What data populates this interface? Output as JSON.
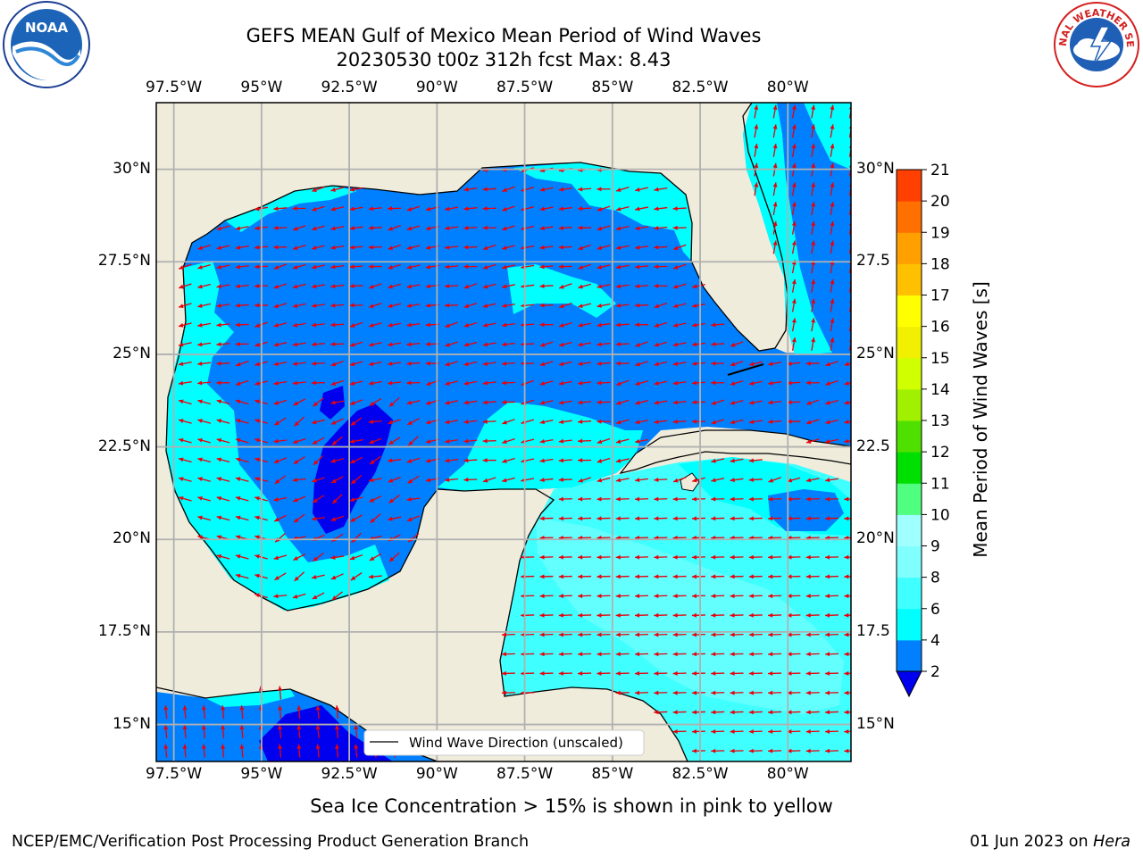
{
  "header": {
    "title_line1": "GEFS MEAN Gulf of Mexico Mean Period of Wind Waves",
    "title_line2": "20230530 t00z 312h fcst   Max: 8.43"
  },
  "logos": {
    "left": {
      "name": "noaa-logo",
      "text": "NOAA"
    },
    "right": {
      "name": "nws-logo",
      "text": "NATIONAL WEATHER SERVICE"
    }
  },
  "legend": {
    "label": "Wind Wave Direction (unscaled)"
  },
  "colorbar": {
    "label": "Mean Period of Wind Waves [s]",
    "ticks": [
      "2",
      "4",
      "6",
      "8",
      "9",
      "10",
      "11",
      "12",
      "13",
      "14",
      "15",
      "16",
      "17",
      "18",
      "19",
      "20",
      "21"
    ],
    "colors": [
      "#0080ff",
      "#00ffff",
      "#40ffff",
      "#80ffff",
      "#a0ffff",
      "#50ff80",
      "#00e000",
      "#50e000",
      "#a0f000",
      "#d0ff00",
      "#f0f000",
      "#ffff00",
      "#ffc000",
      "#ffa000",
      "#ff7000",
      "#ff4000",
      "#ff0000"
    ],
    "under_color": "#0000ee"
  },
  "footer": {
    "note": "Sea Ice Concentration > 15% is shown in pink to yellow",
    "left": "NCEP/EMC/Verification Post Processing Product Generation Branch",
    "date": "01 Jun 2023 on ",
    "host": "Hera"
  },
  "chart_data": {
    "type": "heatmap",
    "title": "GEFS MEAN Gulf of Mexico Mean Period of Wind Waves",
    "subtitle": "20230530 t00z 312h fcst   Max: 8.43",
    "x_ticks": [
      "97.5°W",
      "95°W",
      "92.5°W",
      "90°W",
      "87.5°W",
      "85°W",
      "82.5°W",
      "80°W"
    ],
    "y_ticks_left": [
      "30°N",
      "27.5°N",
      "25°N",
      "22.5°N",
      "20°N",
      "17.5°N",
      "15°N"
    ],
    "y_ticks_right": [
      "30°N",
      "27.5",
      "25°N",
      "22.5",
      "20°N",
      "17.5",
      "15°N"
    ],
    "lon_range": [
      -98,
      -78.2
    ],
    "lat_range": [
      14,
      31.8
    ],
    "max_value": 8.43,
    "units": "s",
    "grid": true
  }
}
